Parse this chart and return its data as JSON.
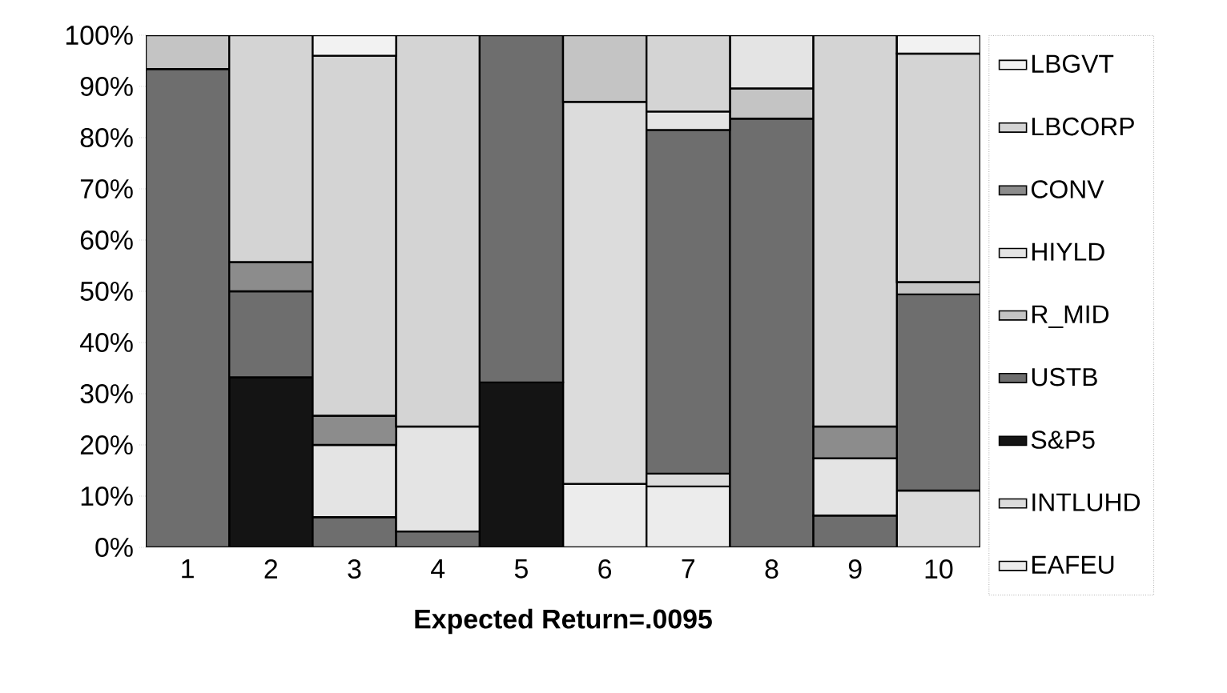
{
  "chart_data": {
    "type": "bar",
    "stacked": true,
    "xlabel": "**Expected Return=.0095**",
    "categories": [
      "1",
      "2",
      "3",
      "4",
      "5",
      "6",
      "7",
      "8",
      "9",
      "10"
    ],
    "series": [
      {
        "name": "EAFEU",
        "color": "#ececec",
        "values": [
          null,
          null,
          null,
          null,
          null,
          12.4,
          11.9,
          null,
          null,
          null
        ]
      },
      {
        "name": "INTLUHD",
        "color": "#dcdcdc",
        "values": [
          null,
          null,
          null,
          null,
          null,
          74.6,
          2.5,
          null,
          null,
          11.1
        ]
      },
      {
        "name": "S&P5",
        "color": "#141414",
        "values": [
          null,
          33.2,
          null,
          null,
          32.2,
          null,
          null,
          null,
          null,
          null
        ]
      },
      {
        "name": "USTB",
        "color": "#6e6e6e",
        "values": [
          93.4,
          16.8,
          5.9,
          3.1,
          67.8,
          null,
          67.1,
          83.7,
          6.2,
          38.3
        ]
      },
      {
        "name": "R_MID",
        "color": "#c4c4c4",
        "values": [
          6.6,
          null,
          null,
          null,
          null,
          13,
          null,
          5.9,
          null,
          2.4
        ]
      },
      {
        "name": "HIYLD",
        "color": "#e4e4e4",
        "values": [
          null,
          null,
          14.1,
          20.5,
          null,
          null,
          3.6,
          10.4,
          11.2,
          null
        ]
      },
      {
        "name": "CONV",
        "color": "#8c8c8c",
        "values": [
          null,
          5.7,
          5.7,
          null,
          null,
          null,
          null,
          null,
          6.2,
          null
        ]
      },
      {
        "name": "LBCORP",
        "color": "#d4d4d4",
        "values": [
          null,
          44.3,
          70.3,
          76.4,
          null,
          null,
          14.9,
          null,
          76.4,
          44.6
        ]
      },
      {
        "name": "LBGVT",
        "color": "#f2f2f2",
        "values": [
          null,
          null,
          4,
          null,
          null,
          null,
          null,
          null,
          null,
          3.6
        ]
      }
    ],
    "ylim": [
      0,
      100
    ],
    "yticks": [
      {
        "value": 0,
        "label": "0%"
      },
      {
        "value": 10,
        "label": "10%"
      },
      {
        "value": 20,
        "label": "20%"
      },
      {
        "value": 30,
        "label": "30%"
      },
      {
        "value": 40,
        "label": "40%"
      },
      {
        "value": 50,
        "label": "50%"
      },
      {
        "value": 60,
        "label": "60%"
      },
      {
        "value": 70,
        "label": "70%"
      },
      {
        "value": 80,
        "label": "80%"
      },
      {
        "value": 90,
        "label": "90%"
      },
      {
        "value": 100,
        "label": "100%"
      }
    ],
    "legend": "right",
    "grid": false
  }
}
